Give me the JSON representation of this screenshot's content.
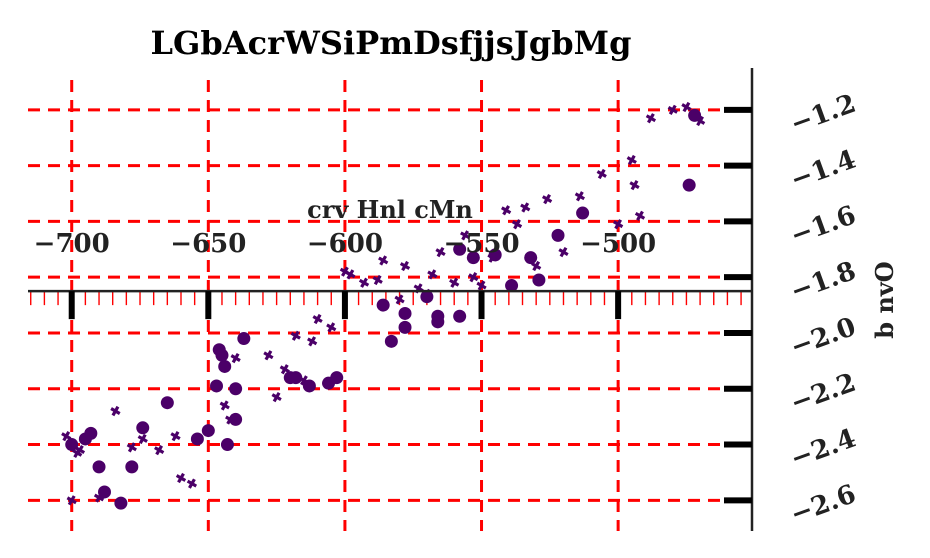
{
  "chart_data": {
    "type": "scatter",
    "title": "LGbAcrWSiPmDsfjjsJgbMg",
    "xlabel": "crv Hnl cMn",
    "ylabel": "b nvO",
    "xlim": [
      -716,
      -451
    ],
    "ylim": [
      -2.71,
      -1.05
    ],
    "x_ticks": [
      -700,
      -650,
      -600,
      -550,
      -500
    ],
    "x_tick_labels": [
      "−700",
      "−650",
      "−600",
      "−550",
      "−500"
    ],
    "y_ticks": [
      -1.2,
      -1.4,
      -1.6,
      -1.8,
      -2.0,
      -2.2,
      -2.4,
      -2.6
    ],
    "y_tick_labels": [
      "−1.2",
      "−1.4",
      "−1.6",
      "−1.8",
      "−2.0",
      "−2.2",
      "−2.4",
      "−2.6"
    ],
    "x_axis_at_y": -1.85,
    "y_axis_at_x": -451,
    "grid": true,
    "colors": {
      "points": "#4b0068",
      "grid": "#ff0000",
      "axis": "#222222"
    },
    "series": [
      {
        "marker": "circle",
        "x": [
          -700,
          -695,
          -693,
          -690,
          -688,
          -682,
          -678,
          -674,
          -665,
          -654,
          -650,
          -647,
          -646,
          -645,
          -644,
          -643,
          -640,
          -640,
          -637,
          -620,
          -618,
          -613,
          -606,
          -603,
          -586,
          -583,
          -578,
          -578,
          -570,
          -566,
          -566,
          -558,
          -558,
          -553,
          -545,
          -539,
          -532,
          -529,
          -522,
          -513,
          -474,
          -472
        ],
        "y": [
          -2.4,
          -2.38,
          -2.36,
          -2.48,
          -2.57,
          -2.61,
          -2.48,
          -2.34,
          -2.25,
          -2.38,
          -2.35,
          -2.19,
          -2.06,
          -2.08,
          -2.12,
          -2.4,
          -2.2,
          -2.31,
          -2.02,
          -2.16,
          -2.16,
          -2.19,
          -2.18,
          -2.16,
          -1.9,
          -2.03,
          -1.98,
          -1.93,
          -1.87,
          -1.94,
          -1.96,
          -1.7,
          -1.94,
          -1.73,
          -1.72,
          -1.83,
          -1.73,
          -1.81,
          -1.65,
          -1.57,
          -1.47,
          -1.22
        ]
      },
      {
        "marker": "plus",
        "x": [
          -702,
          -698,
          -700,
          -697,
          -690,
          -684,
          -678,
          -674,
          -668,
          -662,
          -660,
          -656,
          -644,
          -642,
          -640,
          -628,
          -625,
          -622,
          -618,
          -615,
          -612,
          -610,
          -605,
          -600,
          -598,
          -593,
          -588,
          -586,
          -580,
          -578,
          -573,
          -570,
          -568,
          -565,
          -560,
          -556,
          -553,
          -550,
          -546,
          -541,
          -537,
          -534,
          -530,
          -526,
          -520,
          -514,
          -506,
          -500,
          -495,
          -494,
          -492,
          -488,
          -480,
          -475,
          -470
        ],
        "y": [
          -2.37,
          -2.43,
          -2.6,
          -2.42,
          -2.59,
          -2.28,
          -2.41,
          -2.38,
          -2.42,
          -2.37,
          -2.52,
          -2.54,
          -2.26,
          -2.31,
          -2.09,
          -2.08,
          -2.23,
          -2.13,
          -2.01,
          -2.17,
          -2.03,
          -1.95,
          -1.98,
          -1.78,
          -1.79,
          -1.82,
          -1.81,
          -1.74,
          -1.88,
          -1.76,
          -1.84,
          -1.86,
          -1.79,
          -1.71,
          -1.82,
          -1.65,
          -1.8,
          -1.83,
          -1.73,
          -1.56,
          -1.61,
          -1.55,
          -1.76,
          -1.52,
          -1.71,
          -1.51,
          -1.43,
          -1.61,
          -1.38,
          -1.47,
          -1.58,
          -1.23,
          -1.2,
          -1.19,
          -1.24
        ]
      }
    ]
  }
}
